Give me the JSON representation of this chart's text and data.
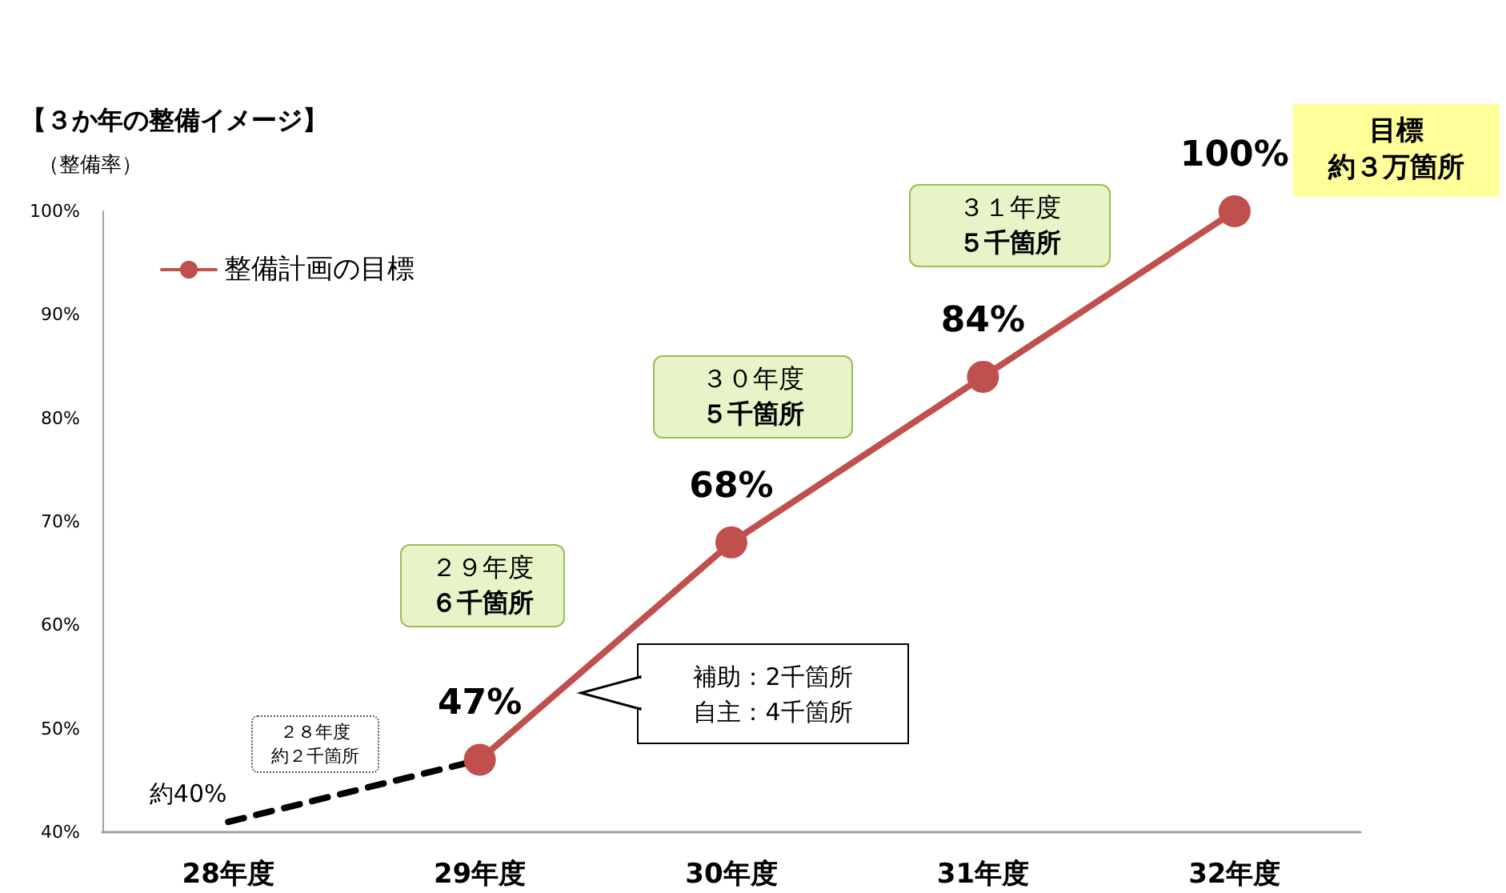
{
  "chart_data": {
    "type": "line",
    "title": "【３か年の整備イメージ】",
    "ylabel": "（整備率）",
    "categories": [
      "28年度",
      "29年度",
      "30年度",
      "31年度",
      "32年度"
    ],
    "series": [
      {
        "name": "整備計画の目標",
        "color": "#c0504d",
        "values": [
          null,
          47,
          68,
          84,
          100
        ],
        "value_labels": [
          null,
          "47%",
          "68%",
          "84%",
          "100%"
        ],
        "marker": "circle",
        "line_style": "solid"
      },
      {
        "color": "#000000",
        "values": [
          41,
          47,
          null,
          null,
          null
        ],
        "marker": "none",
        "line_style": "dashed"
      }
    ],
    "ylim": [
      40,
      100
    ],
    "yticks": [
      {
        "value": 40,
        "label": "40%"
      },
      {
        "value": 50,
        "label": "50%"
      },
      {
        "value": 60,
        "label": "60%"
      },
      {
        "value": 70,
        "label": "70%"
      },
      {
        "value": 80,
        "label": "80%"
      },
      {
        "value": 90,
        "label": "90%"
      },
      {
        "value": 100,
        "label": "100%"
      }
    ],
    "annotations": [
      {
        "text": "約40%",
        "x": "28年度",
        "y": 41
      },
      "２８年度",
      "約２千箇所",
      "２９年度",
      "６千箇所",
      "３０年度",
      "５千箇所",
      "３１年度",
      "５千箇所",
      "補助：2千箇所",
      "自主：4千箇所",
      "目標",
      "約３万箇所"
    ],
    "grid": false,
    "legend": "top left"
  }
}
